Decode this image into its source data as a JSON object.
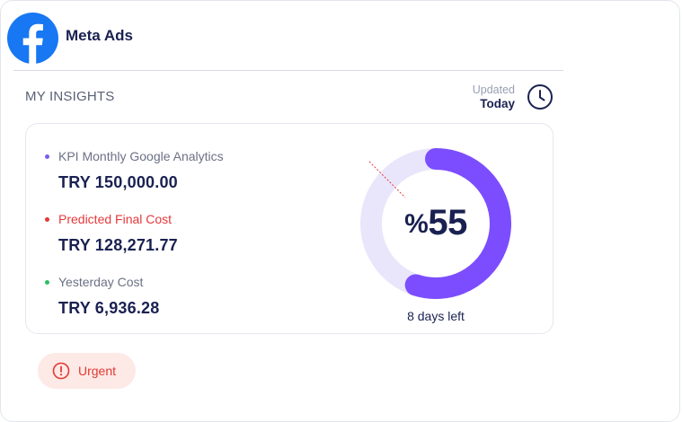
{
  "header": {
    "brand": "Meta Ads",
    "logo_icon": "facebook-icon",
    "brand_color": "#1877f2"
  },
  "insights": {
    "title": "MY INSIGHTS",
    "updated_label": "Updated",
    "updated_value": "Today"
  },
  "kpis": [
    {
      "label": "KPI Monthly Google Analytics",
      "value": "TRY 150,000.00",
      "dot_color": "#7c5cf5"
    },
    {
      "label": "Predicted Final Cost",
      "value": "TRY 128,271.77",
      "dot_color": "#e5393a"
    },
    {
      "label": "Yesterday Cost",
      "value": "TRY 6,936.28",
      "dot_color": "#2dbe63"
    }
  ],
  "progress": {
    "percent_symbol": "%",
    "percent_value": "55",
    "fraction": 0.55,
    "days_left": "8 days left",
    "fill_color": "#7c4dff",
    "track_color": "#e9e6fb"
  },
  "status": {
    "label": "Urgent",
    "icon": "alert-circle-icon",
    "color": "#e23a33"
  }
}
